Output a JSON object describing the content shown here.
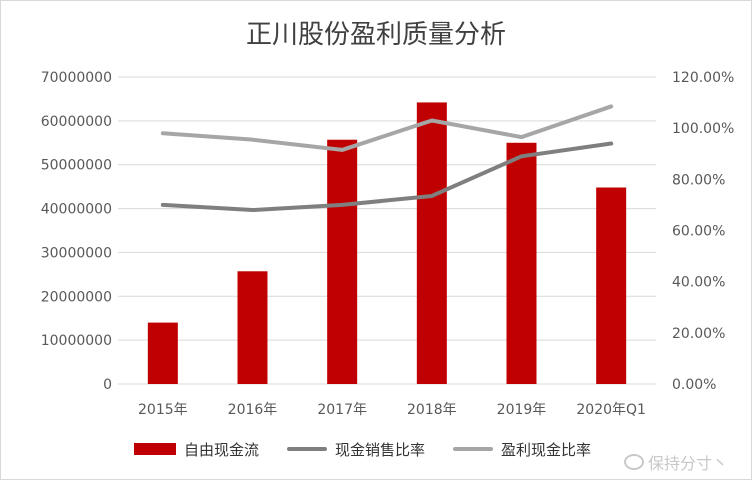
{
  "chart_data": {
    "type": "bar",
    "title": "正川股份盈利质量分析",
    "categories": [
      "2015年",
      "2016年",
      "2017年",
      "2018年",
      "2019年",
      "2020年Q1"
    ],
    "y_left": {
      "ylim": [
        0,
        70000000
      ],
      "ticks": [
        0,
        10000000,
        20000000,
        30000000,
        40000000,
        50000000,
        60000000,
        70000000
      ],
      "tick_labels": [
        "0",
        "10000000",
        "20000000",
        "30000000",
        "40000000",
        "50000000",
        "60000000",
        "70000000"
      ]
    },
    "y_right": {
      "ylim": [
        0,
        1.2
      ],
      "ticks": [
        0,
        0.2,
        0.4,
        0.6,
        0.8,
        1.0,
        1.2
      ],
      "tick_labels": [
        "0.00%",
        "20.00%",
        "40.00%",
        "60.00%",
        "80.00%",
        "100.00%",
        "120.00%"
      ]
    },
    "series": [
      {
        "name": "自由现金流",
        "type": "bar",
        "axis": "left",
        "values": [
          14000000,
          25700000,
          55700000,
          64200000,
          55000000,
          44800000
        ]
      },
      {
        "name": "现金销售比率",
        "type": "line",
        "axis": "right",
        "values": [
          0.7,
          0.68,
          0.7,
          0.735,
          0.89,
          0.94
        ]
      },
      {
        "name": "盈利现金比率",
        "type": "line",
        "axis": "right",
        "values": [
          0.98,
          0.955,
          0.915,
          1.03,
          0.965,
          1.085
        ]
      }
    ],
    "legend_position": "bottom",
    "grid": "horizontal"
  },
  "colors": {
    "bar": "#c00000",
    "line_dark": "#7f7f7f",
    "line_light": "#a6a6a6",
    "grid": "#d9d9d9",
    "text": "#595959"
  },
  "watermark": {
    "text": "保持分寸丶"
  }
}
